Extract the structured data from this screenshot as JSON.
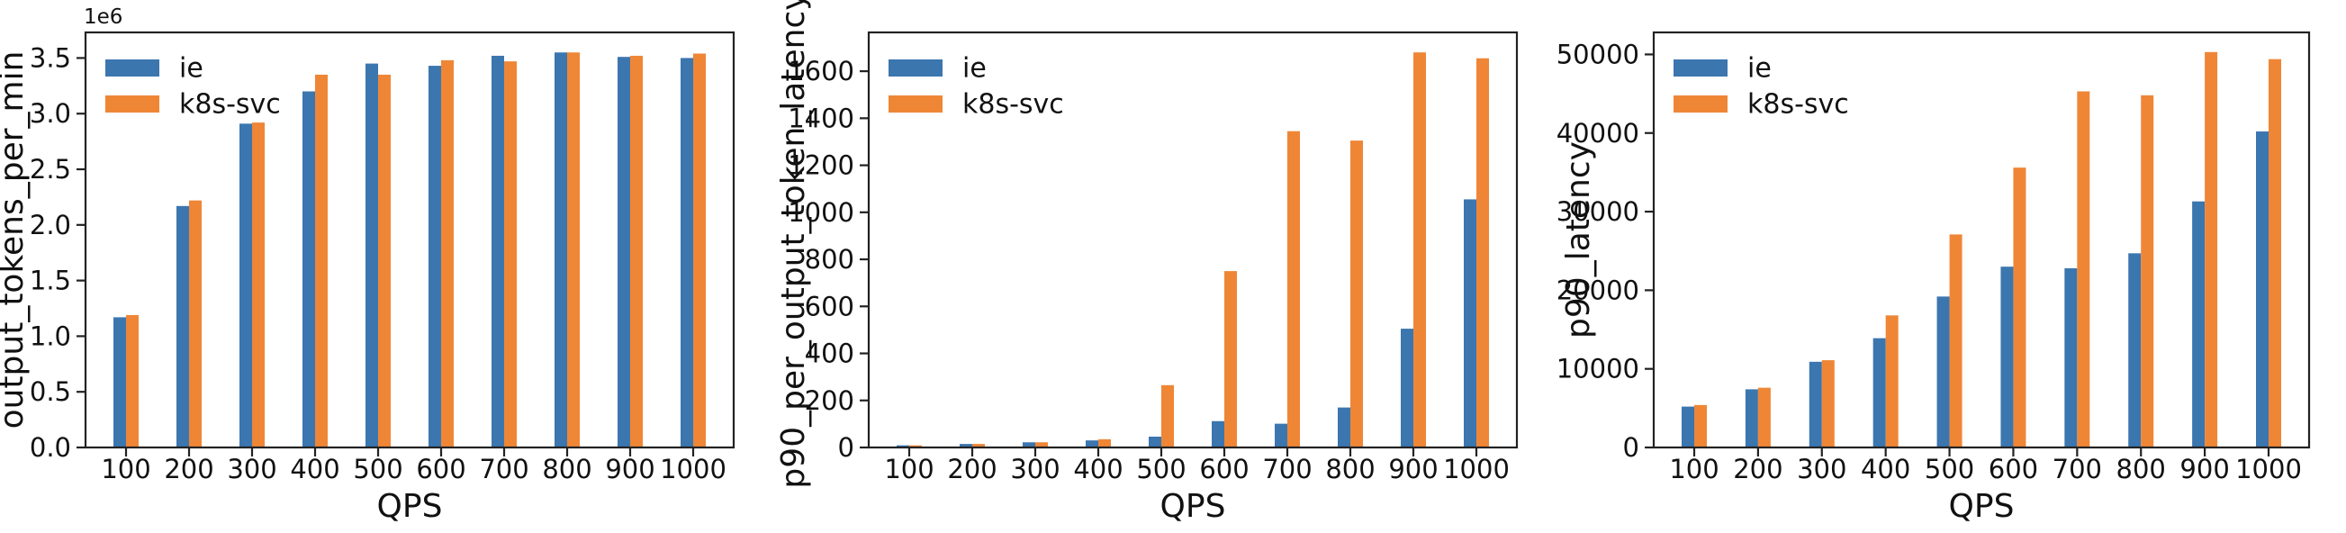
{
  "figure": {
    "background": "#ffffff",
    "text_color": "#111111",
    "axis_color": "#222222"
  },
  "chart_data": [
    {
      "type": "bar",
      "id": "output-tokens-per-min",
      "xlabel": "QPS",
      "ylabel": "output_tokens_per_min",
      "offset_text": "1e6",
      "grid": false,
      "legend_position": "upper-left",
      "categories": [
        "100",
        "200",
        "300",
        "400",
        "500",
        "600",
        "700",
        "800",
        "900",
        "1000"
      ],
      "series": [
        {
          "name": "ie",
          "color": "#3b76af",
          "values": [
            1170000,
            2170000,
            2910000,
            3200000,
            3450000,
            3430000,
            3520000,
            3550000,
            3510000,
            3500000
          ]
        },
        {
          "name": "k8s-svc",
          "color": "#ef8636",
          "values": [
            1190000,
            2220000,
            2920000,
            3350000,
            3350000,
            3480000,
            3470000,
            3550000,
            3520000,
            3540000
          ]
        }
      ],
      "ylim": [
        0,
        3730000
      ],
      "yticks": [
        0,
        500000,
        1000000,
        1500000,
        2000000,
        2500000,
        3000000,
        3500000
      ],
      "ytick_labels": [
        "0.0",
        "0.5",
        "1.0",
        "1.5",
        "2.0",
        "2.5",
        "3.0",
        "3.5"
      ]
    },
    {
      "type": "bar",
      "id": "p90-per-output-token-latency",
      "xlabel": "QPS",
      "ylabel": "p90_per_output_token_latency",
      "offset_text": "",
      "grid": false,
      "legend_position": "upper-left",
      "categories": [
        "100",
        "200",
        "300",
        "400",
        "500",
        "600",
        "700",
        "800",
        "900",
        "1000"
      ],
      "series": [
        {
          "name": "ie",
          "color": "#3b76af",
          "values": [
            9,
            15,
            22,
            30,
            46,
            112,
            101,
            170,
            505,
            1055
          ]
        },
        {
          "name": "k8s-svc",
          "color": "#ef8636",
          "values": [
            9,
            15,
            22,
            35,
            265,
            750,
            1345,
            1305,
            1680,
            1655
          ]
        }
      ],
      "ylim": [
        0,
        1765
      ],
      "yticks": [
        0,
        200,
        400,
        600,
        800,
        1000,
        1200,
        1400,
        1600
      ],
      "ytick_labels": [
        "0",
        "200",
        "400",
        "600",
        "800",
        "1000",
        "1200",
        "1400",
        "1600"
      ]
    },
    {
      "type": "bar",
      "id": "p90-latency",
      "xlabel": "QPS",
      "ylabel": "p90_latency",
      "offset_text": "",
      "grid": false,
      "legend_position": "upper-left",
      "categories": [
        "100",
        "200",
        "300",
        "400",
        "500",
        "600",
        "700",
        "800",
        "900",
        "1000"
      ],
      "series": [
        {
          "name": "ie",
          "color": "#3b76af",
          "values": [
            5200,
            7400,
            10900,
            13900,
            19200,
            23000,
            22800,
            24700,
            31300,
            40200
          ]
        },
        {
          "name": "k8s-svc",
          "color": "#ef8636",
          "values": [
            5400,
            7600,
            11100,
            16800,
            27100,
            35600,
            45300,
            44800,
            50300,
            49400
          ]
        }
      ],
      "ylim": [
        0,
        52800
      ],
      "yticks": [
        0,
        10000,
        20000,
        30000,
        40000,
        50000
      ],
      "ytick_labels": [
        "0",
        "10000",
        "20000",
        "30000",
        "40000",
        "50000"
      ]
    }
  ]
}
